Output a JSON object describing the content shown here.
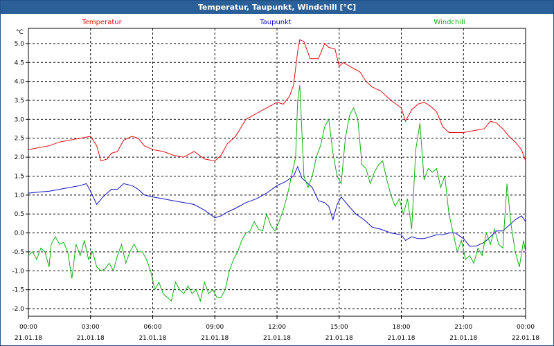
{
  "window": {
    "title": "Temperatur, Taupunkt, Windchill [°C]"
  },
  "chart_data": {
    "type": "line",
    "title": "Temperatur, Taupunkt, Windchill [°C]",
    "ylabel": "°C",
    "ylim": [
      -2.2,
      5.4
    ],
    "yticks": [
      "5.0",
      "4.5",
      "4.0",
      "3.5",
      "3.0",
      "2.5",
      "2.0",
      "1.5",
      "1.0",
      "0.5",
      "0.0",
      "-0.5",
      "-1.0",
      "-1.5",
      "-2.0"
    ],
    "xlim": [
      0,
      24
    ],
    "x_ticks": [
      {
        "time": "00:00",
        "date": "21.01.18"
      },
      {
        "time": "03:00",
        "date": "21.01.18"
      },
      {
        "time": "06:00",
        "date": "21.01.18"
      },
      {
        "time": "09:00",
        "date": "21.01.18"
      },
      {
        "time": "12:00",
        "date": "21.01.18"
      },
      {
        "time": "15:00",
        "date": "21.01.18"
      },
      {
        "time": "18:00",
        "date": "21.01.18"
      },
      {
        "time": "21:00",
        "date": "21.01.18"
      },
      {
        "time": "00:00",
        "date": "22.01.18"
      }
    ],
    "legend": [
      "Temperatur",
      "Taupunkt",
      "Windchill"
    ],
    "colors": {
      "Temperatur": "#e01010",
      "Taupunkt": "#1010c0",
      "Windchill": "#10b010",
      "title_bar": "#2b5f97"
    },
    "series": [
      {
        "name": "Temperatur",
        "x": [
          0,
          0.5,
          1,
          1.5,
          2,
          2.5,
          3,
          3.3,
          3.5,
          3.8,
          4,
          4.3,
          4.6,
          5,
          5.3,
          5.6,
          6,
          6.5,
          7,
          7.5,
          8,
          8.5,
          9,
          9.3,
          9.6,
          10,
          10.5,
          11,
          11.5,
          12,
          12.3,
          12.6,
          12.8,
          13,
          13.1,
          13.3,
          13.6,
          14,
          14.3,
          14.5,
          14.8,
          15,
          15.2,
          15.5,
          16,
          16.3,
          16.6,
          17,
          17.5,
          18,
          18.2,
          18.5,
          18.8,
          19.1,
          19.4,
          19.7,
          20,
          20.3,
          20.6,
          21,
          21.5,
          22,
          22.3,
          22.6,
          22.9,
          23.2,
          23.5,
          23.8,
          24
        ],
        "values": [
          2.2,
          2.25,
          2.3,
          2.4,
          2.45,
          2.5,
          2.55,
          2.3,
          1.9,
          1.95,
          2.1,
          2.15,
          2.45,
          2.55,
          2.5,
          2.3,
          2.2,
          2.15,
          2.05,
          2.0,
          2.15,
          1.95,
          1.9,
          2.05,
          2.35,
          2.55,
          3.0,
          3.15,
          3.3,
          3.45,
          3.4,
          3.6,
          3.9,
          4.8,
          5.1,
          5.05,
          4.6,
          4.6,
          5.0,
          4.9,
          4.85,
          4.4,
          4.5,
          4.4,
          4.25,
          4.0,
          3.85,
          3.75,
          3.5,
          3.3,
          2.95,
          3.25,
          3.4,
          3.45,
          3.35,
          3.2,
          2.8,
          2.65,
          2.65,
          2.65,
          2.7,
          2.75,
          2.95,
          2.9,
          2.75,
          2.55,
          2.4,
          2.2,
          1.9
        ]
      },
      {
        "name": "Taupunkt",
        "x": [
          0,
          0.5,
          1,
          1.5,
          2,
          2.5,
          2.8,
          3,
          3.3,
          3.6,
          4,
          4.3,
          4.6,
          5,
          5.3,
          5.6,
          6,
          6.5,
          7,
          7.5,
          8,
          8.5,
          9,
          9.3,
          9.6,
          10,
          10.5,
          11,
          11.5,
          12,
          12.4,
          12.8,
          13,
          13.2,
          13.4,
          13.7,
          14,
          14.3,
          14.5,
          14.7,
          14.9,
          15.1,
          15.4,
          15.8,
          16.2,
          16.6,
          17,
          17.5,
          18,
          18.2,
          18.5,
          18.8,
          19.1,
          19.4,
          19.7,
          20,
          20.3,
          20.6,
          21,
          21.3,
          21.6,
          22,
          22.3,
          22.6,
          22.9,
          23.2,
          23.5,
          23.8,
          24
        ],
        "values": [
          1.05,
          1.08,
          1.1,
          1.15,
          1.2,
          1.25,
          1.3,
          1.1,
          0.75,
          0.95,
          1.15,
          1.15,
          1.3,
          1.25,
          1.15,
          1.0,
          0.95,
          0.9,
          0.85,
          0.8,
          0.75,
          0.6,
          0.4,
          0.45,
          0.55,
          0.65,
          0.8,
          0.9,
          1.05,
          1.25,
          1.35,
          1.5,
          1.75,
          1.45,
          1.35,
          1.2,
          0.85,
          0.8,
          0.7,
          0.35,
          0.75,
          0.95,
          0.75,
          0.5,
          0.35,
          0.15,
          0.1,
          0.0,
          -0.05,
          -0.2,
          -0.1,
          -0.15,
          -0.15,
          -0.1,
          -0.05,
          -0.05,
          0.0,
          0.0,
          -0.15,
          -0.35,
          -0.35,
          -0.25,
          -0.1,
          0.05,
          0.05,
          0.2,
          0.35,
          0.45,
          0.3
        ]
      },
      {
        "name": "Windchill",
        "x": [
          0,
          0.2,
          0.4,
          0.6,
          0.8,
          1,
          1.1,
          1.3,
          1.5,
          1.7,
          1.9,
          2.1,
          2.3,
          2.5,
          2.7,
          2.9,
          3.1,
          3.3,
          3.5,
          3.7,
          3.9,
          4.1,
          4.3,
          4.5,
          4.7,
          4.9,
          5.1,
          5.3,
          5.5,
          5.7,
          5.9,
          6.1,
          6.3,
          6.5,
          6.7,
          6.9,
          7.1,
          7.3,
          7.5,
          7.7,
          7.9,
          8.1,
          8.3,
          8.5,
          8.7,
          8.9,
          9.1,
          9.3,
          9.5,
          9.7,
          9.9,
          10.1,
          10.3,
          10.5,
          10.7,
          10.9,
          11.1,
          11.3,
          11.5,
          11.7,
          11.9,
          12.1,
          12.3,
          12.5,
          12.7,
          12.9,
          13.0,
          13.1,
          13.3,
          13.5,
          13.7,
          13.9,
          14.1,
          14.3,
          14.5,
          14.7,
          14.9,
          15.1,
          15.3,
          15.5,
          15.7,
          15.9,
          16.1,
          16.3,
          16.5,
          16.7,
          16.9,
          17.1,
          17.3,
          17.5,
          17.7,
          17.9,
          18.1,
          18.3,
          18.5,
          18.7,
          18.9,
          19.1,
          19.3,
          19.5,
          19.7,
          19.9,
          20.1,
          20.3,
          20.5,
          20.7,
          20.9,
          21.1,
          21.3,
          21.5,
          21.7,
          21.9,
          22.1,
          22.3,
          22.5,
          22.7,
          22.9,
          23.1,
          23.3,
          23.5,
          23.7,
          23.9,
          24
        ],
        "values": [
          -0.6,
          -0.5,
          -0.7,
          -0.4,
          -0.5,
          -0.9,
          -0.3,
          -0.1,
          -0.3,
          -0.25,
          -0.5,
          -1.2,
          -0.3,
          -0.6,
          -0.2,
          -0.7,
          -0.5,
          -0.9,
          -1.0,
          -0.95,
          -0.8,
          -1.0,
          -0.6,
          -0.3,
          -0.8,
          -0.5,
          -0.3,
          -0.5,
          -0.5,
          -0.7,
          -1.0,
          -1.5,
          -1.3,
          -1.6,
          -1.7,
          -1.8,
          -1.3,
          -1.5,
          -1.6,
          -1.4,
          -1.6,
          -1.5,
          -1.8,
          -1.3,
          -1.6,
          -1.5,
          -1.7,
          -1.7,
          -1.5,
          -1.0,
          -0.7,
          -0.5,
          -0.2,
          0.0,
          0.05,
          0.3,
          0.1,
          0.05,
          0.5,
          0.2,
          0.05,
          0.3,
          0.6,
          1.0,
          1.5,
          2.0,
          3.5,
          3.9,
          1.5,
          1.2,
          1.5,
          2.0,
          2.3,
          2.8,
          3.0,
          2.1,
          1.5,
          1.3,
          2.5,
          3.1,
          3.3,
          3.0,
          1.8,
          1.7,
          1.3,
          1.6,
          1.8,
          1.9,
          1.4,
          1.0,
          0.7,
          0.9,
          0.5,
          0.9,
          0.1,
          2.2,
          2.9,
          1.4,
          1.7,
          1.6,
          1.7,
          1.2,
          1.5,
          0.5,
          0.0,
          -0.5,
          -0.2,
          -0.7,
          -0.6,
          -0.8,
          -0.4,
          -0.6,
          0.0,
          -0.3,
          0.1,
          -0.3,
          -0.4,
          1.3,
          0.2,
          -0.5,
          -0.9,
          -0.2,
          -0.5
        ]
      }
    ]
  }
}
